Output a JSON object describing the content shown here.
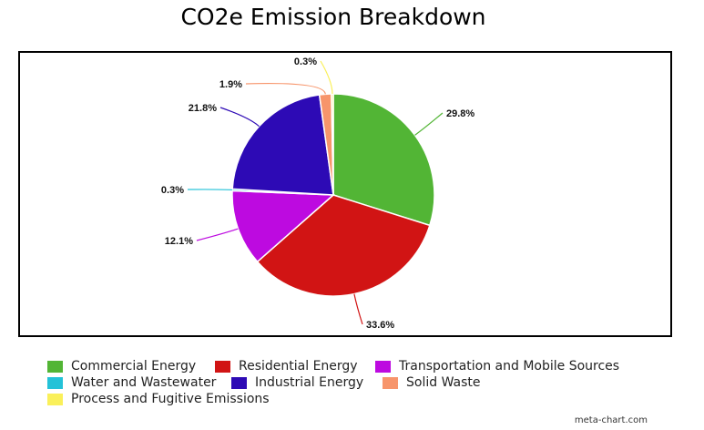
{
  "chart_data": {
    "type": "pie",
    "title": "CO2e Emission Breakdown",
    "slices": [
      {
        "label": "Commercial Energy",
        "value": 29.8,
        "display": "29.8%",
        "color": "#52b535"
      },
      {
        "label": "Residential Energy",
        "value": 33.6,
        "display": "33.6%",
        "color": "#d11414"
      },
      {
        "label": "Transportation and Mobile Sources",
        "value": 12.1,
        "display": "12.1%",
        "color": "#bd0ae0"
      },
      {
        "label": "Water and Wastewater",
        "value": 0.3,
        "display": "0.3%",
        "color": "#24c2d8"
      },
      {
        "label": "Industrial Energy",
        "value": 21.8,
        "display": "21.8%",
        "color": "#2d0ab5"
      },
      {
        "label": "Solid Waste",
        "value": 1.9,
        "display": "1.9%",
        "color": "#f7956b"
      },
      {
        "label": "Process and Fugitive Emissions",
        "value": 0.3,
        "display": "0.3%",
        "color": "#faf05a"
      }
    ],
    "legend_position": "bottom"
  },
  "watermark": "meta-chart.com"
}
